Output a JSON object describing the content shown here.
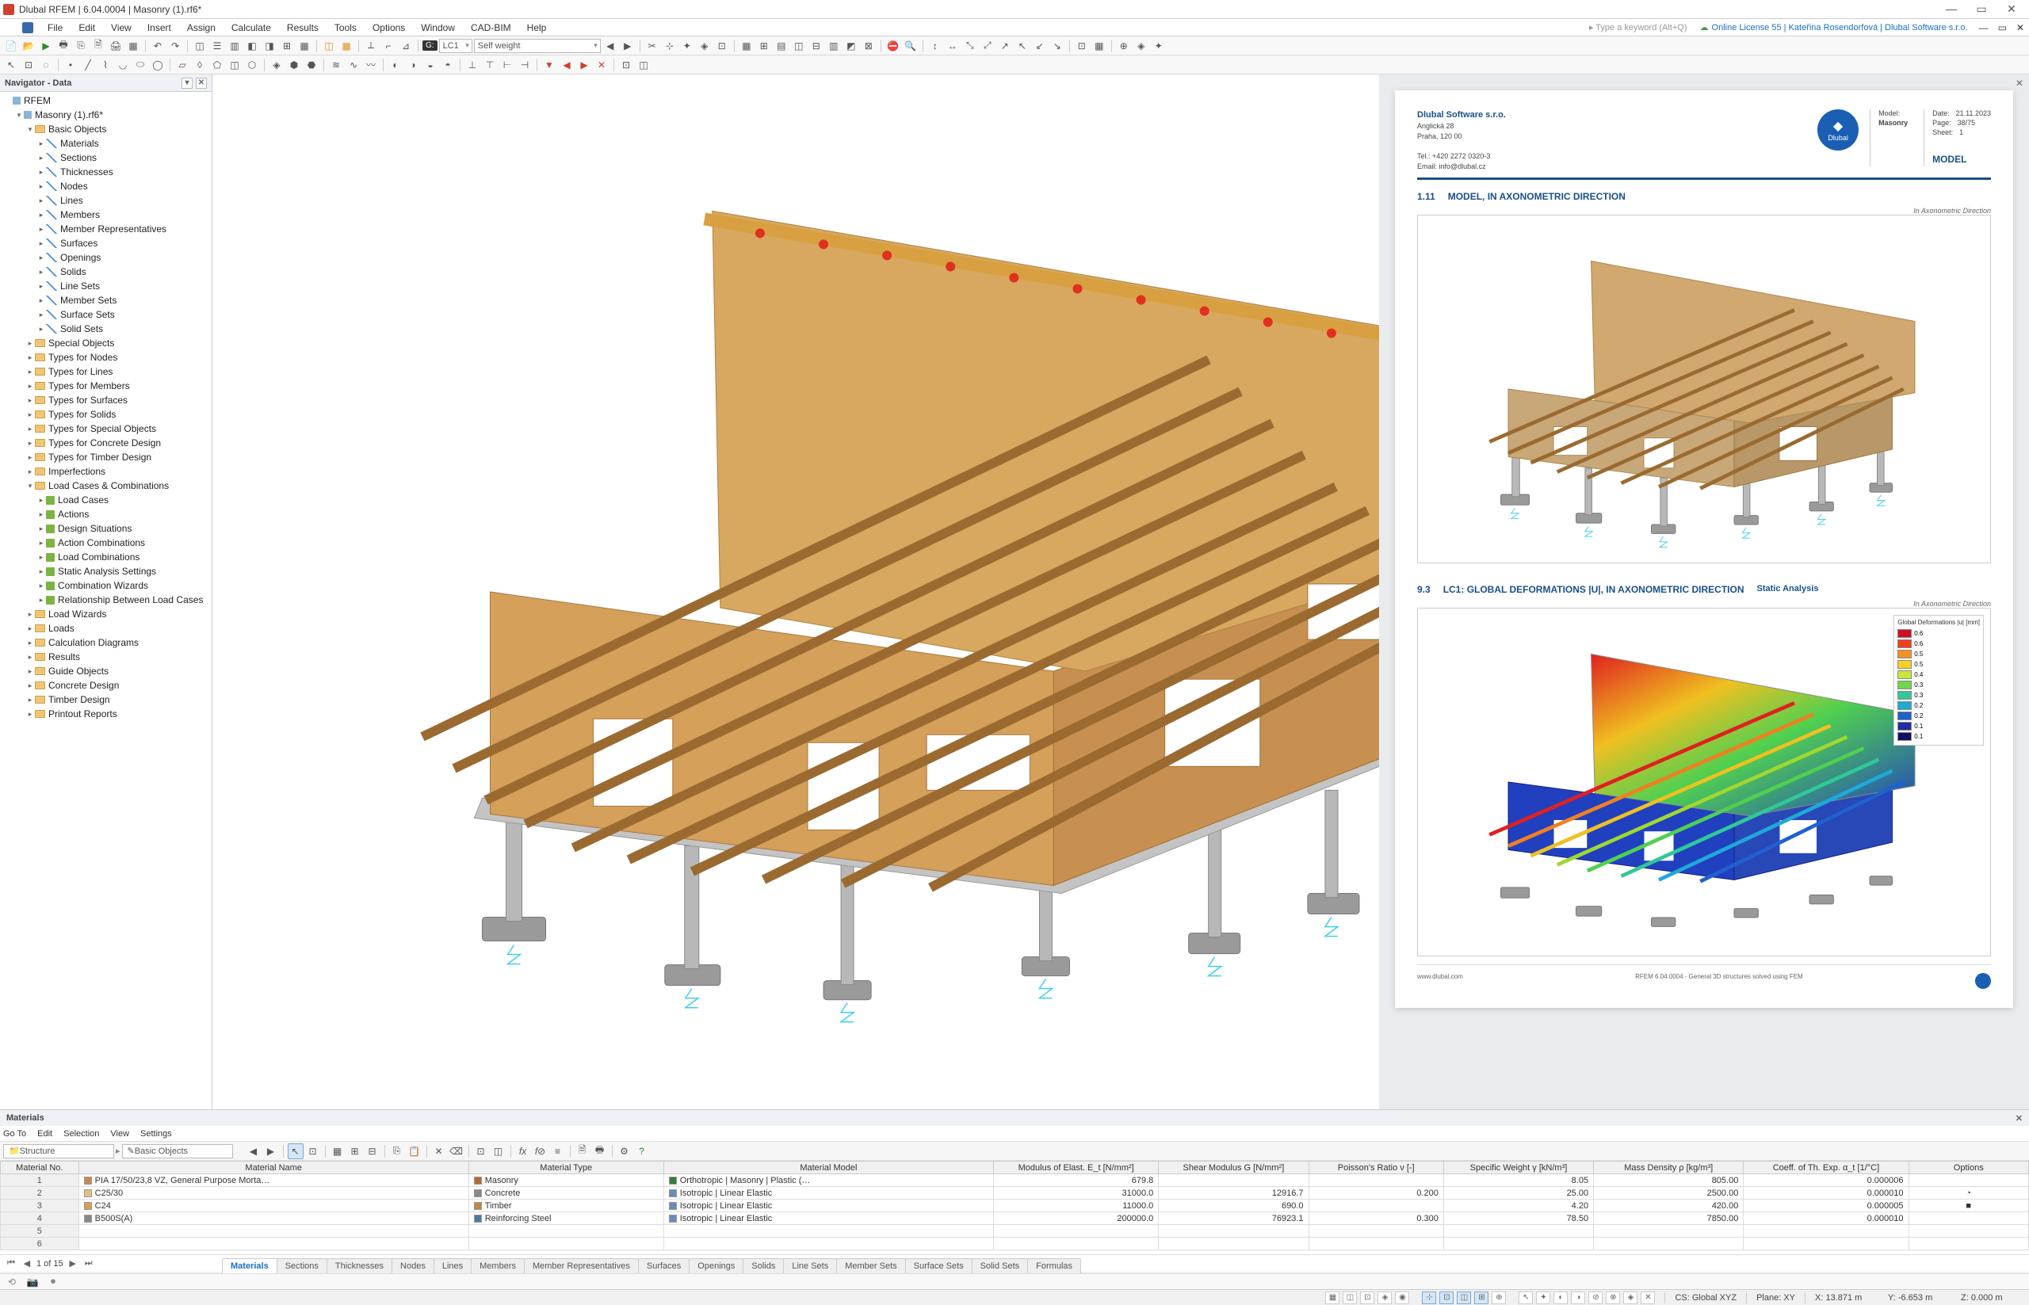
{
  "titlebar": {
    "title": "Dlubal RFEM | 6.04.0004 | Masonry (1).rf6*"
  },
  "menubar": {
    "items": [
      "File",
      "Edit",
      "View",
      "Insert",
      "Assign",
      "Calculate",
      "Results",
      "Tools",
      "Options",
      "Window",
      "CAD-BIM",
      "Help"
    ],
    "search_placeholder": "▸ Type a keyword (Alt+Q)",
    "license": "Online License 55 | Kateřina Rosendorfová | Dlubal Software s.r.o."
  },
  "toolbar1": {
    "lc_badge": "G:",
    "lc_label": "LC1",
    "lc_desc": "Self weight"
  },
  "navigator": {
    "title": "Navigator - Data",
    "root": "RFEM",
    "model": "Masonry (1).rf6*",
    "basic_objects": "Basic Objects",
    "basic_children": [
      "Materials",
      "Sections",
      "Thicknesses",
      "Nodes",
      "Lines",
      "Members",
      "Member Representatives",
      "Surfaces",
      "Openings",
      "Solids",
      "Line Sets",
      "Member Sets",
      "Surface Sets",
      "Solid Sets"
    ],
    "folders1": [
      "Special Objects",
      "Types for Nodes",
      "Types for Lines",
      "Types for Members",
      "Types for Surfaces",
      "Types for Solids",
      "Types for Special Objects",
      "Types for Concrete Design",
      "Types for Timber Design",
      "Imperfections"
    ],
    "load_cases": "Load Cases & Combinations",
    "load_children": [
      "Load Cases",
      "Actions",
      "Design Situations",
      "Action Combinations",
      "Load Combinations",
      "Static Analysis Settings",
      "Combination Wizards",
      "Relationship Between Load Cases"
    ],
    "folders2": [
      "Load Wizards",
      "Loads",
      "Calculation Diagrams",
      "Results",
      "Guide Objects",
      "Concrete Design",
      "Timber Design",
      "Printout Reports"
    ]
  },
  "report": {
    "company": "Dlubal Software s.r.o.",
    "addr1": "Anglická 28",
    "addr2": "Praha, 120 00",
    "addr3": "Tel.: +420 2272 0320-3",
    "addr4": "Email: info@dlubal.cz",
    "logo_text": "Dlubal",
    "meta_model_lbl": "Model:",
    "meta_model": "Masonry",
    "meta_date_lbl": "Date:",
    "meta_date": "21.11.2023",
    "meta_page_lbl": "Page:",
    "meta_page": "38/75",
    "meta_sheet_lbl": "Sheet:",
    "meta_sheet": "1",
    "model_label": "MODEL",
    "sec1_num": "1.11",
    "sec1_title": "MODEL, IN AXONOMETRIC DIRECTION",
    "sec1_sub": "In Axonometric Direction",
    "sec2_num": "9.3",
    "sec2_title": "LC1: GLOBAL DEFORMATIONS |U|, IN AXONOMETRIC DIRECTION",
    "sec2_badge": "Static Analysis",
    "sec2_sub": "In Axonometric Direction",
    "legend_title": "Global Deformations |u| [mm]",
    "legend": [
      {
        "c": "#d01020",
        "v": "0.6"
      },
      {
        "c": "#f04020",
        "v": "0.6"
      },
      {
        "c": "#f89020",
        "v": "0.5"
      },
      {
        "c": "#f8d020",
        "v": "0.5"
      },
      {
        "c": "#c8e838",
        "v": "0.4"
      },
      {
        "c": "#70d848",
        "v": "0.3"
      },
      {
        "c": "#30c898",
        "v": "0.3"
      },
      {
        "c": "#20a8d8",
        "v": "0.2"
      },
      {
        "c": "#2060d0",
        "v": "0.2"
      },
      {
        "c": "#2030a0",
        "v": "0.1"
      },
      {
        "c": "#101060",
        "v": "0.1"
      }
    ],
    "footer_left": "www.dlubal.com",
    "footer_mid": "RFEM 6.04.0004 - General 3D structures solved using FEM"
  },
  "datapanel": {
    "title": "Materials",
    "menus": [
      "Go To",
      "Edit",
      "Selection",
      "View",
      "Settings"
    ],
    "crumb1": "Structure",
    "crumb2": "Basic Objects",
    "columns_group": [
      "Material No.",
      "Material Name",
      "Material Type",
      "Material Model",
      "Modulus of Elast. E_t [N/mm²]",
      "Shear Modulus G [N/mm²]",
      "Poisson's Ratio ν [-]",
      "Specific Weight γ [kN/m³]",
      "Mass Density ρ [kg/m³]",
      "Coeff. of Th. Exp. α_t [1/°C]",
      "Options"
    ],
    "rows": [
      {
        "id": "1",
        "sw": "#c88850",
        "name": "PIA 17/50/23,8 VZ, General Purpose Morta…",
        "tsw": "#b86830",
        "type": "Masonry",
        "msw": "#3a7a3a",
        "model": "Orthotropic | Masonry | Plastic (…",
        "e": "679.8",
        "g": "",
        "v": "",
        "w": "8.05",
        "rho": "805.00",
        "a": "0.000006",
        "opt": ""
      },
      {
        "id": "2",
        "sw": "#e0c080",
        "name": "C25/30",
        "tsw": "#888888",
        "type": "Concrete",
        "msw": "#688cb8",
        "model": "Isotropic | Linear Elastic",
        "e": "31000.0",
        "g": "12916.7",
        "v": "0.200",
        "w": "25.00",
        "rho": "2500.00",
        "a": "0.000010",
        "opt": "◔"
      },
      {
        "id": "3",
        "sw": "#d4a050",
        "name": "C24",
        "tsw": "#c08840",
        "type": "Timber",
        "msw": "#688cb8",
        "model": "Isotropic | Linear Elastic",
        "e": "11000.0",
        "g": "690.0",
        "v": "",
        "w": "4.20",
        "rho": "420.00",
        "a": "0.000005",
        "opt": "■"
      },
      {
        "id": "4",
        "sw": "#888888",
        "name": "B500S(A)",
        "tsw": "#5078a0",
        "type": "Reinforcing Steel",
        "msw": "#688cb8",
        "model": "Isotropic | Linear Elastic",
        "e": "200000.0",
        "g": "76923.1",
        "v": "0.300",
        "w": "78.50",
        "rho": "7850.00",
        "a": "0.000010",
        "opt": ""
      }
    ],
    "pager": "1 of 15",
    "tabs": [
      "Materials",
      "Sections",
      "Thicknesses",
      "Nodes",
      "Lines",
      "Members",
      "Member Representatives",
      "Surfaces",
      "Openings",
      "Solids",
      "Line Sets",
      "Member Sets",
      "Surface Sets",
      "Solid Sets",
      "Formulas"
    ]
  },
  "statusbar": {
    "cs": "CS: Global XYZ",
    "plane": "Plane: XY",
    "x": "X: 13.871 m",
    "y": "Y: -6.653 m",
    "z": "Z: 0.000 m"
  }
}
